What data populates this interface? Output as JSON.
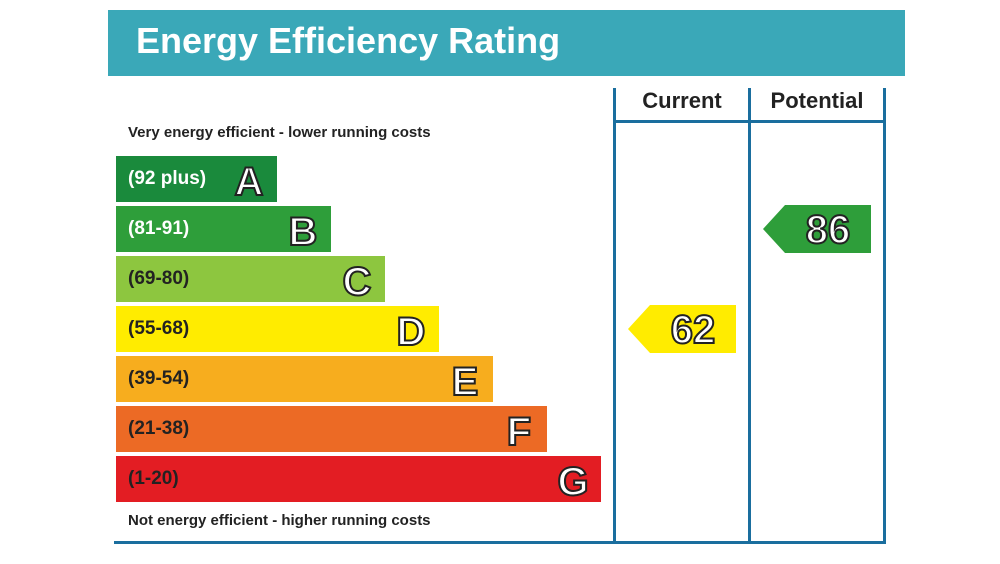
{
  "header": {
    "title": "Energy Efficiency Rating"
  },
  "columns": {
    "current": "Current",
    "potential": "Potential"
  },
  "captions": {
    "top": "Very energy efficient - lower running costs",
    "bottom": "Not energy efficient - higher running costs"
  },
  "chart_data": {
    "type": "bar",
    "title": "Energy Efficiency Rating",
    "bands": [
      {
        "letter": "A",
        "range": "(92 plus)",
        "color": "#1a8a3c",
        "text_color": "#ffffff"
      },
      {
        "letter": "B",
        "range": "(81-91)",
        "color": "#2e9e3a",
        "text_color": "#ffffff"
      },
      {
        "letter": "C",
        "range": "(69-80)",
        "color": "#8dc63f",
        "text_color": "#222222"
      },
      {
        "letter": "D",
        "range": "(55-68)",
        "color": "#ffec00",
        "text_color": "#222222"
      },
      {
        "letter": "E",
        "range": "(39-54)",
        "color": "#f7ad1e",
        "text_color": "#222222"
      },
      {
        "letter": "F",
        "range": "(21-38)",
        "color": "#ec6a25",
        "text_color": "#222222"
      },
      {
        "letter": "G",
        "range": "(1-20)",
        "color": "#e31d23",
        "text_color": "#222222"
      }
    ],
    "current": {
      "value": 62,
      "band": "D",
      "color": "#ffec00"
    },
    "potential": {
      "value": 86,
      "band": "B",
      "color": "#2e9e3a"
    }
  }
}
